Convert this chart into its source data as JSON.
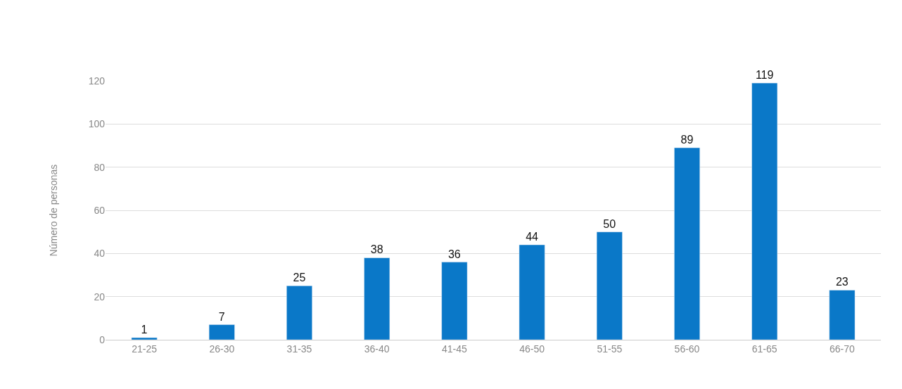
{
  "chart_data": {
    "type": "bar",
    "ylabel": "Número de personas",
    "categories": [
      "21-25",
      "26-30",
      "31-35",
      "36-40",
      "41-45",
      "46-50",
      "51-55",
      "56-60",
      "61-65",
      "66-70"
    ],
    "values": [
      1,
      7,
      25,
      38,
      36,
      44,
      50,
      89,
      119,
      23
    ],
    "color": "#0a78c8",
    "ylim": [
      0,
      120
    ],
    "yticks": [
      0,
      20,
      40,
      60,
      80,
      100,
      120
    ],
    "grid": "y",
    "data_labels": true
  }
}
